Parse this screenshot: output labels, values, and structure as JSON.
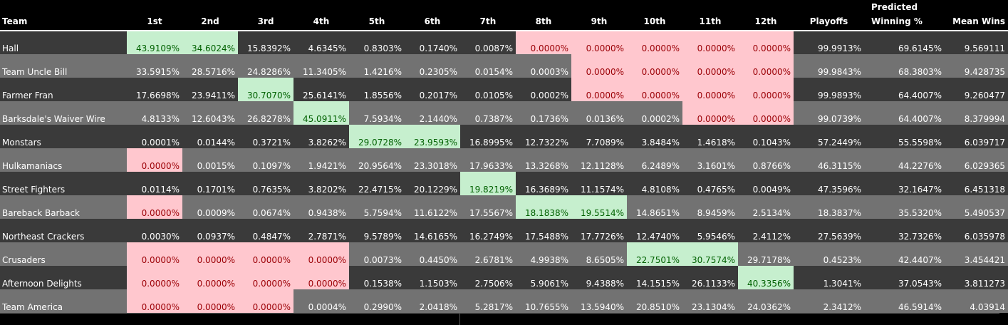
{
  "headers": [
    "Team",
    "1st",
    "2nd",
    "3rd",
    "4th",
    "5th",
    "6th",
    "7th",
    "8th",
    "9th",
    "10th",
    "11th",
    "12th",
    "Playoffs",
    "Predicted Winning %",
    "Mean Wins"
  ],
  "header_pred_top": "Predicted",
  "header_pred_bottom": "Winning %",
  "colors": {
    "dark_row": "#3a3a3a",
    "light_row": "#727272",
    "green_fill": "#c6efce",
    "green_text": "#006100",
    "red_fill": "#ffc7ce",
    "red_text": "#9c0006"
  },
  "rows": [
    {
      "team": "Hall",
      "cells": [
        "43.9109%",
        "34.6024%",
        "15.8392%",
        "4.6345%",
        "0.8303%",
        "0.1740%",
        "0.0087%",
        "0.0000%",
        "0.0000%",
        "0.0000%",
        "0.0000%",
        "0.0000%"
      ],
      "playoffs": "99.9913%",
      "win_pct": "69.6145%",
      "mean_wins": "9.569111"
    },
    {
      "team": "Team Uncle Bill",
      "cells": [
        "33.5915%",
        "28.5716%",
        "24.8286%",
        "11.3405%",
        "1.4216%",
        "0.2305%",
        "0.0154%",
        "0.0003%",
        "0.0000%",
        "0.0000%",
        "0.0000%",
        "0.0000%"
      ],
      "playoffs": "99.9843%",
      "win_pct": "68.3803%",
      "mean_wins": "9.428735"
    },
    {
      "team": "Farmer Fran",
      "cells": [
        "17.6698%",
        "23.9411%",
        "30.7070%",
        "25.6141%",
        "1.8556%",
        "0.2017%",
        "0.0105%",
        "0.0002%",
        "0.0000%",
        "0.0000%",
        "0.0000%",
        "0.0000%"
      ],
      "playoffs": "99.9893%",
      "win_pct": "64.4007%",
      "mean_wins": "9.260477"
    },
    {
      "team": "Barksdale's Waiver Wire",
      "cells": [
        "4.8133%",
        "12.6043%",
        "26.8278%",
        "45.0911%",
        "7.5934%",
        "2.1440%",
        "0.7387%",
        "0.1736%",
        "0.0136%",
        "0.0002%",
        "0.0000%",
        "0.0000%"
      ],
      "playoffs": "99.0739%",
      "win_pct": "64.4007%",
      "mean_wins": "8.379994"
    },
    {
      "team": "Monstars",
      "cells": [
        "0.0001%",
        "0.0144%",
        "0.3721%",
        "3.8262%",
        "29.0728%",
        "23.9593%",
        "16.8995%",
        "12.7322%",
        "7.7089%",
        "3.8484%",
        "1.4618%",
        "0.1043%"
      ],
      "playoffs": "57.2449%",
      "win_pct": "55.5598%",
      "mean_wins": "6.039717"
    },
    {
      "team": "Hulkamaniacs",
      "cells": [
        "0.0000%",
        "0.0015%",
        "0.1097%",
        "1.9421%",
        "20.9564%",
        "23.3018%",
        "17.9633%",
        "13.3268%",
        "12.1128%",
        "6.2489%",
        "3.1601%",
        "0.8766%"
      ],
      "playoffs": "46.3115%",
      "win_pct": "44.2276%",
      "mean_wins": "6.029365"
    },
    {
      "team": "Street Fighters",
      "cells": [
        "0.0114%",
        "0.1701%",
        "0.7635%",
        "3.8202%",
        "22.4715%",
        "20.1229%",
        "19.8219%",
        "16.3689%",
        "11.1574%",
        "4.8108%",
        "0.4765%",
        "0.0049%"
      ],
      "playoffs": "47.3596%",
      "win_pct": "32.1647%",
      "mean_wins": "6.451318"
    },
    {
      "team": "Bareback Barback",
      "cells": [
        "0.0000%",
        "0.0009%",
        "0.0674%",
        "0.9438%",
        "5.7594%",
        "11.6122%",
        "17.5567%",
        "18.1838%",
        "19.5514%",
        "14.8651%",
        "8.9459%",
        "2.5134%"
      ],
      "playoffs": "18.3837%",
      "win_pct": "35.5320%",
      "mean_wins": "5.490537"
    },
    {
      "team": "Northeast Crackers",
      "cells": [
        "0.0030%",
        "0.0937%",
        "0.4847%",
        "2.7871%",
        "9.5789%",
        "14.6165%",
        "16.2749%",
        "17.5488%",
        "17.7726%",
        "12.4740%",
        "5.9546%",
        "2.4112%"
      ],
      "playoffs": "27.5639%",
      "win_pct": "32.7326%",
      "mean_wins": "6.035978"
    },
    {
      "team": "Crusaders",
      "cells": [
        "0.0000%",
        "0.0000%",
        "0.0000%",
        "0.0000%",
        "0.0073%",
        "0.4450%",
        "2.6781%",
        "4.9938%",
        "8.6505%",
        "22.7501%",
        "30.7574%",
        "29.7178%"
      ],
      "playoffs": "0.4523%",
      "win_pct": "42.4407%",
      "mean_wins": "3.454421"
    },
    {
      "team": "Afternoon Delights",
      "cells": [
        "0.0000%",
        "0.0000%",
        "0.0000%",
        "0.0000%",
        "0.1538%",
        "1.1503%",
        "2.7506%",
        "5.9061%",
        "9.4388%",
        "14.1515%",
        "26.1133%",
        "40.3356%"
      ],
      "playoffs": "1.3041%",
      "win_pct": "37.0543%",
      "mean_wins": "3.811273"
    },
    {
      "team": "Team America",
      "cells": [
        "0.0000%",
        "0.0000%",
        "0.0000%",
        "0.0004%",
        "0.2990%",
        "2.0418%",
        "5.2817%",
        "10.7655%",
        "13.5940%",
        "20.8510%",
        "23.1304%",
        "24.0362%"
      ],
      "playoffs": "2.3412%",
      "win_pct": "46.5914%",
      "mean_wins": "4.03914"
    }
  ],
  "highlights": {
    "green": [
      [
        0,
        0
      ],
      [
        0,
        1
      ],
      [
        2,
        2
      ],
      [
        3,
        3
      ],
      [
        4,
        4
      ],
      [
        4,
        5
      ],
      [
        6,
        6
      ],
      [
        7,
        7
      ],
      [
        7,
        8
      ],
      [
        9,
        9
      ],
      [
        9,
        10
      ],
      [
        10,
        11
      ]
    ],
    "red": [
      [
        0,
        7
      ],
      [
        0,
        8
      ],
      [
        0,
        9
      ],
      [
        0,
        10
      ],
      [
        0,
        11
      ],
      [
        1,
        8
      ],
      [
        1,
        9
      ],
      [
        1,
        10
      ],
      [
        1,
        11
      ],
      [
        2,
        8
      ],
      [
        2,
        9
      ],
      [
        2,
        10
      ],
      [
        2,
        11
      ],
      [
        3,
        10
      ],
      [
        3,
        11
      ],
      [
        5,
        0
      ],
      [
        7,
        0
      ],
      [
        9,
        0
      ],
      [
        9,
        1
      ],
      [
        9,
        2
      ],
      [
        9,
        3
      ],
      [
        10,
        0
      ],
      [
        10,
        1
      ],
      [
        10,
        2
      ],
      [
        10,
        3
      ],
      [
        11,
        0
      ],
      [
        11,
        1
      ],
      [
        11,
        2
      ]
    ]
  }
}
